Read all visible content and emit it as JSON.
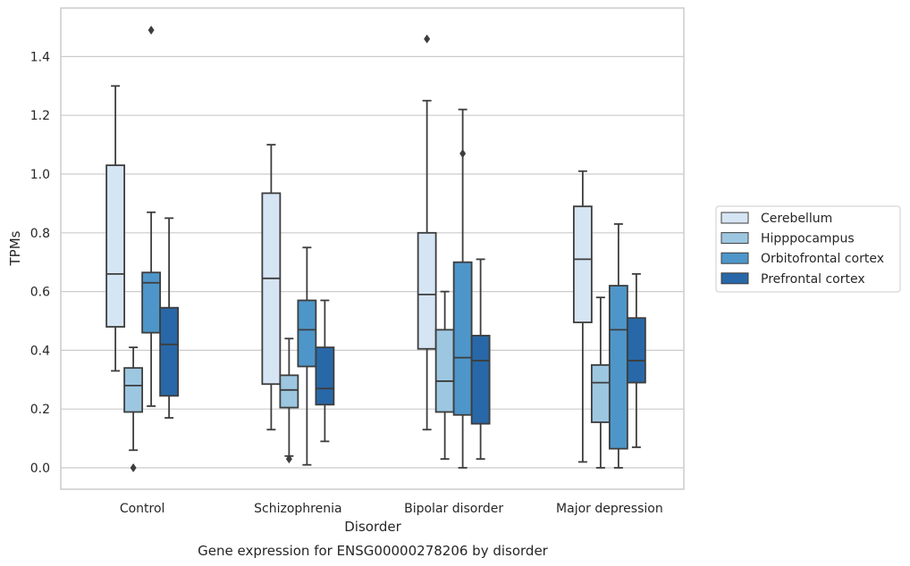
{
  "chart_data": {
    "type": "box",
    "caption": "Gene expression for ENSG00000278206 by disorder",
    "xlabel": "Disorder",
    "ylabel": "TPMs",
    "ylim": [
      -0.07,
      1.57
    ],
    "yticks": [
      0.0,
      0.2,
      0.4,
      0.6,
      0.8,
      1.0,
      1.2,
      1.4
    ],
    "ytick_labels": [
      "0.0",
      "0.2",
      "0.4",
      "0.6",
      "0.8",
      "1.0",
      "1.2",
      "1.4"
    ],
    "grid": "horizontal",
    "legend_position": "right",
    "categories": [
      "Control",
      "Schizophrenia",
      "Bipolar disorder",
      "Major depression"
    ],
    "series": [
      {
        "name": "Cerebellum",
        "color": "#d6e5f4",
        "boxes": [
          {
            "whislo": 0.33,
            "q1": 0.48,
            "med": 0.66,
            "q3": 1.03,
            "whishi": 1.3,
            "fliers": []
          },
          {
            "whislo": 0.13,
            "q1": 0.285,
            "med": 0.645,
            "q3": 0.935,
            "whishi": 1.1,
            "fliers": []
          },
          {
            "whislo": 0.13,
            "q1": 0.405,
            "med": 0.59,
            "q3": 0.8,
            "whishi": 1.25,
            "fliers": [
              1.46
            ]
          },
          {
            "whislo": 0.02,
            "q1": 0.495,
            "med": 0.71,
            "q3": 0.89,
            "whishi": 1.01,
            "fliers": []
          }
        ]
      },
      {
        "name": "Hipppocampus",
        "color": "#9dc7e1",
        "boxes": [
          {
            "whislo": 0.06,
            "q1": 0.19,
            "med": 0.28,
            "q3": 0.34,
            "whishi": 0.41,
            "fliers": [
              0.0
            ]
          },
          {
            "whislo": 0.04,
            "q1": 0.205,
            "med": 0.265,
            "q3": 0.315,
            "whishi": 0.44,
            "fliers": [
              0.03
            ]
          },
          {
            "whislo": 0.03,
            "q1": 0.19,
            "med": 0.295,
            "q3": 0.47,
            "whishi": 0.6,
            "fliers": []
          },
          {
            "whislo": 0.0,
            "q1": 0.155,
            "med": 0.29,
            "q3": 0.35,
            "whishi": 0.58,
            "fliers": []
          }
        ]
      },
      {
        "name": "Orbitofrontal cortex",
        "color": "#4e96c9",
        "boxes": [
          {
            "whislo": 0.21,
            "q1": 0.46,
            "med": 0.63,
            "q3": 0.665,
            "whishi": 0.87,
            "fliers": [
              1.49
            ]
          },
          {
            "whislo": 0.01,
            "q1": 0.345,
            "med": 0.47,
            "q3": 0.57,
            "whishi": 0.75,
            "fliers": []
          },
          {
            "whislo": 0.0,
            "q1": 0.18,
            "med": 0.375,
            "q3": 0.7,
            "whishi": 1.22,
            "fliers": [
              1.07
            ]
          },
          {
            "whislo": 0.0,
            "q1": 0.065,
            "med": 0.47,
            "q3": 0.62,
            "whishi": 0.83,
            "fliers": []
          }
        ]
      },
      {
        "name": "Prefrontal cortex",
        "color": "#2868a8",
        "boxes": [
          {
            "whislo": 0.17,
            "q1": 0.245,
            "med": 0.42,
            "q3": 0.545,
            "whishi": 0.85,
            "fliers": []
          },
          {
            "whislo": 0.09,
            "q1": 0.215,
            "med": 0.27,
            "q3": 0.41,
            "whishi": 0.57,
            "fliers": []
          },
          {
            "whislo": 0.03,
            "q1": 0.15,
            "med": 0.365,
            "q3": 0.45,
            "whishi": 0.71,
            "fliers": []
          },
          {
            "whislo": 0.07,
            "q1": 0.29,
            "med": 0.365,
            "q3": 0.51,
            "whishi": 0.66,
            "fliers": []
          }
        ]
      }
    ]
  },
  "style": {
    "grid_color": "#cccccc",
    "frame_color": "#cccccc",
    "line_color": "#3d3d3d",
    "text_color": "#262626"
  }
}
